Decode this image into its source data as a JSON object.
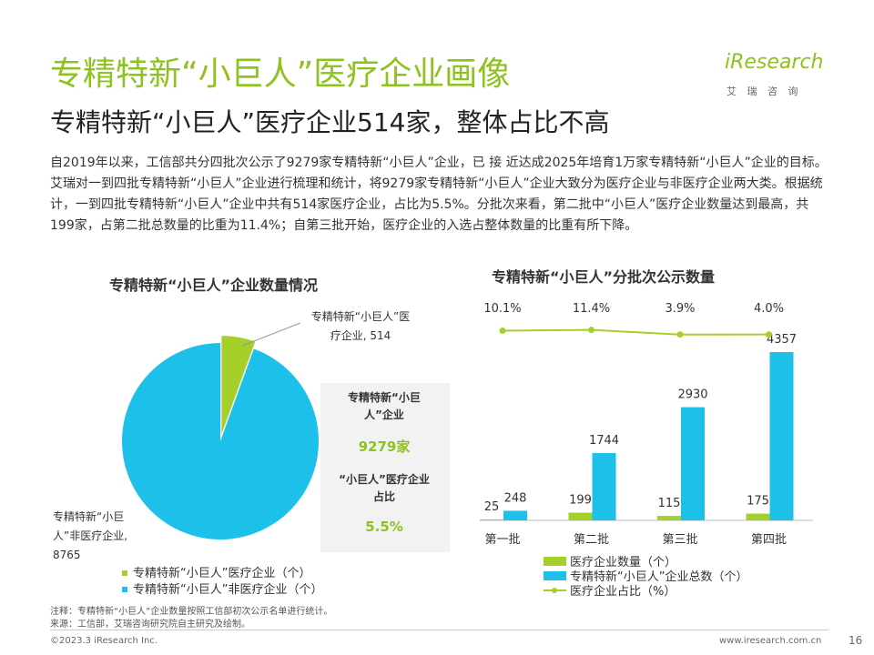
{
  "header": {
    "title": "专精特新“小巨人”医疗企业画像",
    "subtitle": "专精特新“小巨人”医疗企业514家，整体占比不高",
    "logo": "iResearch",
    "logo_sub": "艾 瑞 咨 询"
  },
  "body": "自2019年以来，工信部共分四批次公示了9279家专精特新“小巨人”企业，已 接 近达成2025年培育1万家专精特新“小巨人”企业的目标。艾瑞对一到四批专精特新“小巨人”企业进行梳理和统计，将9279家专精特新“小巨人”企业大致分为医疗企业与非医疗企业两大类。根据统计，一到四批专精特新“小巨人”企业中共有514家医疗企业，占比为5.5%。分批次来看，第二批中“小巨人”医疗企业数量达到最高，共199家，占第二批总数量的比重为11.4%；自第三批开始，医疗企业的入选占整体数量的比重有所下降。",
  "chart_data": [
    {
      "type": "pie",
      "title": "专精特新“小巨人”企业数量情况",
      "categories": [
        "专精特新“小巨人”医疗企业（个）",
        "专精特新“小巨人”非医疗企业（个）"
      ],
      "values": [
        514,
        8765
      ],
      "colors": [
        "#a5cf2a",
        "#1cc0e8"
      ],
      "value_labels": [
        "专精特新“小巨人”医疗企业, 514",
        "专精特新“小巨人”非医疗企业, 8765"
      ],
      "summary": [
        {
          "label": "专精特新“小巨人”企业",
          "value": "9279家"
        },
        {
          "label": "“小巨人”医疗企业占比",
          "value": "5.5%"
        }
      ]
    },
    {
      "type": "bar",
      "title": "专精特新“小巨人”分批次公示数量",
      "categories": [
        "第一批",
        "第二批",
        "第三批",
        "第四批"
      ],
      "series": [
        {
          "name": "医疗企业数量（个）",
          "color": "#a5cf2a",
          "values": [
            25,
            199,
            115,
            175
          ]
        },
        {
          "name": "专精特新“小巨人”企业总数（个）",
          "color": "#1cc0e8",
          "values": [
            248,
            1744,
            2930,
            4357
          ]
        },
        {
          "name": "医疗企业占比（%）",
          "color": "#a5cf2a",
          "type": "line",
          "axis": "y2",
          "values": [
            10.1,
            11.4,
            3.9,
            4.0
          ],
          "value_labels": [
            "10.1%",
            "11.4%",
            "3.9%",
            "4.0%"
          ]
        }
      ],
      "ylim": [
        0,
        5700
      ],
      "y2lim": [
        -300,
        60
      ]
    }
  ],
  "footer": {
    "note": "注释：专精特新“小巨人”企业数量按照工信部初次公示名单进行统计。",
    "source": "来源：工信部，艾瑞咨询研究院自主研究及绘制。",
    "copyright": "©2023.3 iResearch Inc.",
    "website": "www.iresearch.com.cn",
    "page": "16"
  }
}
